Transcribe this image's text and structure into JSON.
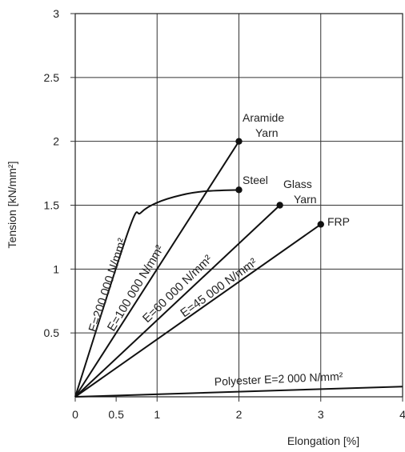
{
  "chart_data": {
    "type": "line",
    "xlabel": "Elongation [%]",
    "ylabel": "Tension [kN/mm²]",
    "xlim": [
      0,
      4
    ],
    "ylim": [
      0,
      3
    ],
    "x_ticks": [
      "0",
      "0.5",
      "1",
      "2",
      "3",
      "4"
    ],
    "x_tick_values": [
      0,
      0.5,
      1,
      2,
      3,
      4
    ],
    "y_ticks": [
      "0.5",
      "1",
      "1.5",
      "2",
      "2.5",
      "3"
    ],
    "y_tick_values": [
      0.5,
      1,
      1.5,
      2,
      2.5,
      3
    ],
    "grid": true,
    "series": [
      {
        "name": "Aramide Yarn",
        "x": [
          0,
          2
        ],
        "y": [
          0,
          2.0
        ],
        "end_marker": true
      },
      {
        "name": "Steel",
        "x": [
          0,
          0.65,
          0.8,
          1.0,
          1.3,
          1.6,
          2.0
        ],
        "y": [
          0,
          1.3,
          1.44,
          1.52,
          1.58,
          1.61,
          1.62
        ],
        "end_marker": true
      },
      {
        "name": "Glass Yarn",
        "x": [
          0,
          2.5
        ],
        "y": [
          0,
          1.5
        ],
        "end_marker": true
      },
      {
        "name": "FRP",
        "x": [
          0,
          3
        ],
        "y": [
          0,
          1.35
        ],
        "end_marker": true
      },
      {
        "name": "Polyester",
        "x": [
          0,
          4
        ],
        "y": [
          0,
          0.08
        ],
        "end_marker": false
      }
    ],
    "annotations": {
      "aramide_line1": "Aramide",
      "aramide_line2": "Yarn",
      "steel": "Steel",
      "glass_line1": "Glass",
      "glass_line2": "Yarn",
      "frp": "FRP",
      "polyester": "Polyester E=2 000 N/mm²",
      "e200": "E=200 000 N/mm²",
      "e100": "E=100 000 N/mm²",
      "e60": "E=60 000 N/mm²",
      "e45": "E=45 000 N/mm²"
    }
  }
}
